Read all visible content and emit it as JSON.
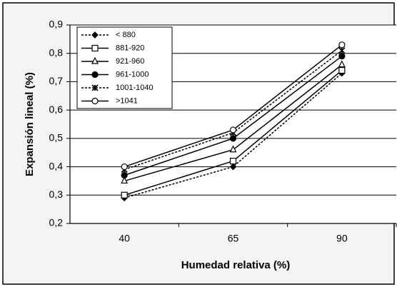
{
  "chart_data": {
    "type": "line",
    "y_label": "Expansión lineal (%)",
    "x_label": "Humedad relativa (%)",
    "categories": [
      "40",
      "65",
      "90"
    ],
    "ylim": [
      0.2,
      0.9
    ],
    "yticks": [
      {
        "value": 0.2,
        "label": "0,2"
      },
      {
        "value": 0.3,
        "label": "0,3"
      },
      {
        "value": 0.4,
        "label": "0,4"
      },
      {
        "value": 0.5,
        "label": "0,5"
      },
      {
        "value": 0.6,
        "label": "0,6"
      },
      {
        "value": 0.7,
        "label": "0,7"
      },
      {
        "value": 0.8,
        "label": "0,8"
      },
      {
        "value": 0.9,
        "label": "0,9"
      }
    ],
    "grid": true,
    "legend": "upper-left",
    "series": [
      {
        "name": "< 880",
        "color": "#000000",
        "marker": "diamond",
        "linestyle": "dotted",
        "values": [
          0.29,
          0.4,
          0.73
        ]
      },
      {
        "name": "881-920",
        "color": "#000000",
        "marker": "square-open",
        "linestyle": "solid",
        "values": [
          0.3,
          0.42,
          0.74
        ]
      },
      {
        "name": "921-960",
        "color": "#000000",
        "marker": "triangle-open",
        "linestyle": "solid",
        "values": [
          0.35,
          0.46,
          0.76
        ]
      },
      {
        "name": "961-1000",
        "color": "#000000",
        "marker": "circle",
        "linestyle": "solid",
        "values": [
          0.37,
          0.5,
          0.79
        ]
      },
      {
        "name": "1001-1040",
        "color": "#000000",
        "marker": "star",
        "linestyle": "dotted",
        "values": [
          0.39,
          0.52,
          0.81
        ]
      },
      {
        "name": ">1041",
        "color": "#000000",
        "marker": "circle-open",
        "linestyle": "solid",
        "values": [
          0.4,
          0.53,
          0.83
        ]
      }
    ]
  }
}
